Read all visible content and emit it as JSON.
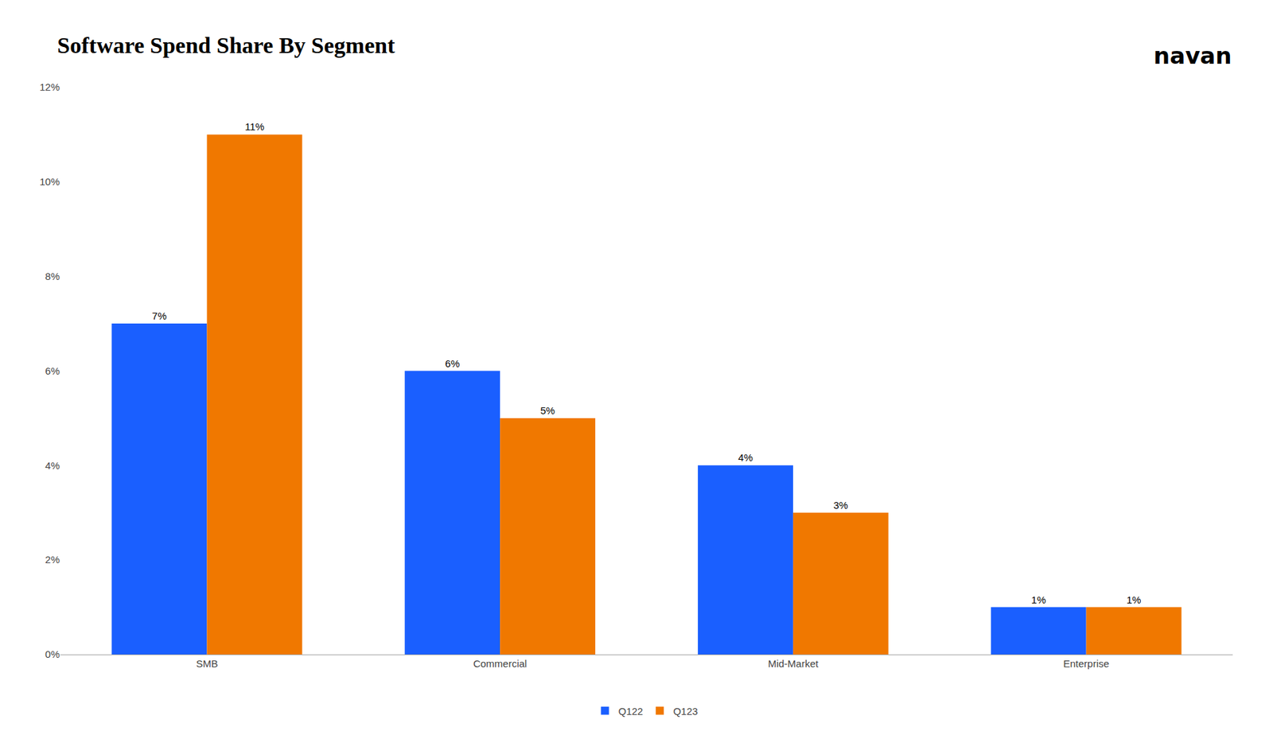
{
  "chart_data": {
    "type": "bar",
    "title": "Software Spend Share By Segment",
    "annotations": [
      "navan"
    ],
    "categories": [
      "SMB",
      "Commercial",
      "Mid-Market",
      "Enterprise"
    ],
    "series": [
      {
        "name": "Q122",
        "color": "#1a5fff",
        "values": [
          0.07,
          0.06,
          0.04,
          0.01
        ],
        "value_labels": [
          "7%",
          "6%",
          "4%",
          "1%"
        ]
      },
      {
        "name": "Q123",
        "color": "#f07800",
        "values": [
          0.11,
          0.05,
          0.03,
          0.01
        ],
        "value_labels": [
          "11%",
          "5%",
          "3%",
          "1%"
        ]
      }
    ],
    "ylim": [
      0,
      0.12
    ],
    "yticks": [
      {
        "value": 0,
        "label": "0%"
      },
      {
        "value": 0.02,
        "label": "2%"
      },
      {
        "value": 0.04,
        "label": "4%"
      },
      {
        "value": 0.06,
        "label": "6%"
      },
      {
        "value": 0.08,
        "label": "8%"
      },
      {
        "value": 0.1,
        "label": "10%"
      },
      {
        "value": 0.12,
        "label": "12%"
      }
    ],
    "grid": false,
    "legend": "bottom",
    "data_labels": true
  }
}
